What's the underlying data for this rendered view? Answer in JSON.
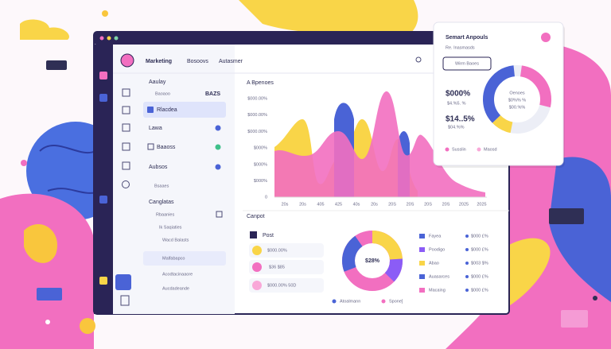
{
  "window": {
    "nav": [
      "Marketing",
      "Bosoovs",
      "Autasmer"
    ]
  },
  "sidebar": {
    "heading": "Aaulay",
    "sub": "Baoaoo",
    "badge": "BAZS",
    "items": [
      "Rlacdea",
      "Lawa",
      "Baaoss",
      "Aubsos",
      "Bsaaes"
    ],
    "section": "Canglatas",
    "subitems": [
      "Rbaanies",
      "Ik Saqiaties",
      "Wacd Balasts",
      "Malfabapco",
      "Acodtacinaaore",
      "Aucdadeande"
    ]
  },
  "area_chart": {
    "title": "A Bpenoes",
    "yticks": [
      "$000.00%",
      "$000.00%",
      "$000.00%",
      "$000%",
      "$000%",
      "$000%",
      "0"
    ],
    "xticks": [
      "20s",
      "20s",
      "405",
      "425",
      "40s",
      "20s",
      "20S",
      "20S",
      "20S",
      "20S",
      "2025",
      "2025"
    ]
  },
  "bottom": {
    "title": "Canpot",
    "post": "Post",
    "cards": [
      "$000.00%",
      "$36 $85",
      "$000.00% 50D"
    ],
    "donut_label": "$28%",
    "legend": [
      {
        "label": "Fayea",
        "value": "$000 £%"
      },
      {
        "label": "Poodigo",
        "value": "$000 £%"
      },
      {
        "label": "Abao",
        "value": "$003 $%"
      },
      {
        "label": "Auasarces",
        "value": "$000 £%"
      },
      {
        "label": "Macaing",
        "value": "$000 £%"
      }
    ],
    "donut_legend": [
      "Atoalmann",
      "Spone]"
    ]
  },
  "card": {
    "title": "Semart Anpouls",
    "subtitle": "Re. Inasmasds",
    "button": "Wirm Baoes",
    "stats": [
      "$000%",
      "$4.%5. %",
      "$14..5%",
      "$04.%%"
    ],
    "center": [
      "Oenoes",
      "$0%% %",
      "$00.%%"
    ],
    "legend": [
      "Susslin",
      "Maosd"
    ]
  }
}
